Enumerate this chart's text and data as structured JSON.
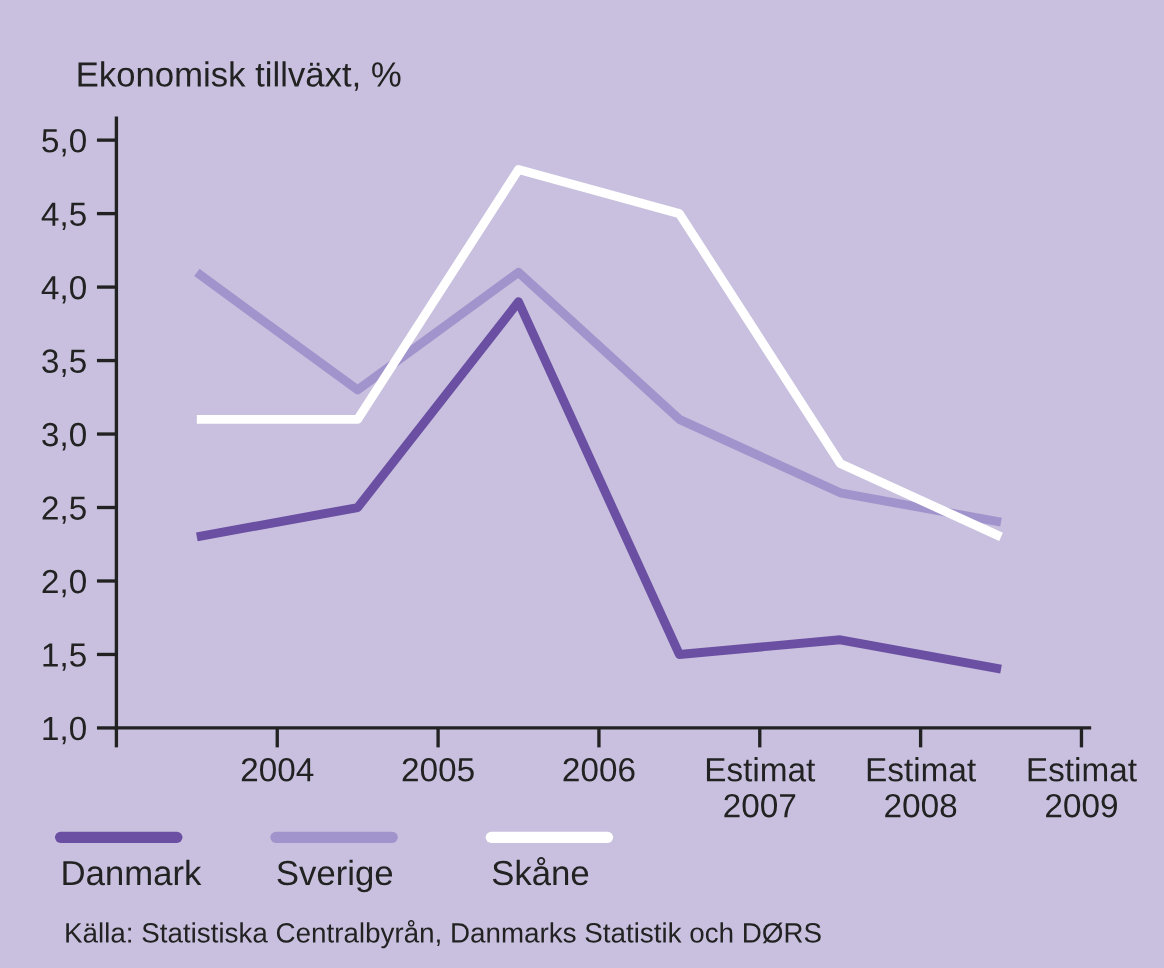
{
  "chart_data": {
    "type": "line",
    "ylabel": "Ekonomisk tillväxt, %",
    "x": [
      2003.5,
      2004.5,
      2005.5,
      2006.5,
      2007.5,
      2008.5
    ],
    "series": [
      {
        "name": "Danmark",
        "color": "#6b4fa3",
        "values": [
          2.3,
          2.5,
          3.9,
          1.5,
          1.6,
          1.4
        ]
      },
      {
        "name": "Sverige",
        "color": "#a194cc",
        "values": [
          4.1,
          3.3,
          4.1,
          3.1,
          2.6,
          2.4
        ]
      },
      {
        "name": "Skåne",
        "color": "#ffffff",
        "values": [
          3.1,
          3.1,
          4.8,
          4.5,
          2.8,
          2.3
        ]
      }
    ],
    "xlim": [
      2003,
      2009.05
    ],
    "xticks": [
      {
        "value": 2003,
        "label": null
      },
      2004,
      2005,
      2006,
      {
        "value": 2007,
        "label": "Estimat\n2007"
      },
      {
        "value": 2008,
        "label": "Estimat\n2008"
      },
      {
        "value": 2009,
        "label": "Estimat\n2009"
      }
    ],
    "ylim": [
      1.0,
      5.15
    ],
    "yticks": [
      {
        "value": 1.0,
        "label": "1,0"
      },
      {
        "value": 1.5,
        "label": "1,5"
      },
      {
        "value": 2.0,
        "label": "2,0"
      },
      {
        "value": 2.5,
        "label": "2,5"
      },
      {
        "value": 3.0,
        "label": "3,0"
      },
      {
        "value": 3.5,
        "label": "3,5"
      },
      {
        "value": 4.0,
        "label": "4,0"
      },
      {
        "value": 4.5,
        "label": "4,5"
      },
      {
        "value": 5.0,
        "label": "5,0"
      }
    ],
    "grid": false,
    "legend": "bottom left",
    "marker": "none",
    "line_style": "solid",
    "annotations": [
      "Källa: Statistiska Centralbyrån, Danmarks Statistik och DØRS"
    ]
  }
}
